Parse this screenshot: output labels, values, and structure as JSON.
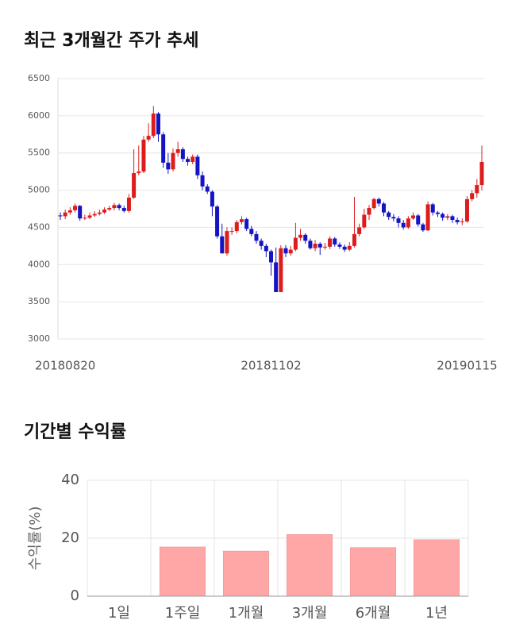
{
  "chart_data": [
    {
      "type": "candlestick",
      "title": "최근 3개월간 주가 추세",
      "categories": [
        null,
        "20180820",
        null,
        null,
        null,
        null,
        null,
        null,
        null,
        null,
        null,
        null,
        null,
        null,
        null,
        null,
        null,
        null,
        null,
        null,
        null,
        null,
        null,
        null,
        null,
        null,
        null,
        null,
        null,
        null,
        null,
        null,
        null,
        null,
        null,
        null,
        null,
        null,
        null,
        null,
        null,
        null,
        null,
        "20181102",
        null,
        null,
        null,
        null,
        null,
        null,
        null,
        null,
        null,
        null,
        null,
        null,
        null,
        null,
        null,
        null,
        null,
        null,
        null,
        null,
        null,
        null,
        null,
        null,
        null,
        null,
        null,
        null,
        null,
        null,
        null,
        null,
        null,
        null,
        null,
        null,
        null,
        null,
        null,
        "20190115",
        null,
        null,
        null
      ],
      "open": [
        4660,
        4650,
        4700,
        4730,
        4790,
        4620,
        4630,
        4660,
        4680,
        4700,
        4740,
        4760,
        4800,
        4760,
        4720,
        4900,
        5230,
        5250,
        5680,
        5730,
        6030,
        5750,
        5370,
        5280,
        5500,
        5550,
        5420,
        5380,
        5450,
        5200,
        5050,
        4980,
        4780,
        4380,
        4150,
        4450,
        4450,
        4570,
        4610,
        4480,
        4410,
        4320,
        4250,
        4180,
        4030,
        3630,
        4220,
        4150,
        4200,
        4360,
        4400,
        4320,
        4220,
        4280,
        4230,
        4240,
        4350,
        4270,
        4240,
        4200,
        4250,
        4410,
        4500,
        4670,
        4760,
        4880,
        4820,
        4700,
        4640,
        4620,
        4560,
        4500,
        4620,
        4660,
        4540,
        4460,
        4810,
        4700,
        4680,
        4630,
        4650,
        4600,
        4570,
        4580,
        4880,
        4960,
        5070
      ],
      "high": [
        4700,
        4740,
        4770,
        4820,
        4800,
        4670,
        4700,
        4720,
        4740,
        4770,
        4790,
        4830,
        4820,
        4790,
        4950,
        5550,
        5600,
        5730,
        5900,
        6130,
        6050,
        5780,
        5500,
        5560,
        5650,
        5580,
        5450,
        5480,
        5480,
        5250,
        5080,
        5000,
        4800,
        4550,
        4500,
        4500,
        4600,
        4650,
        4630,
        4520,
        4450,
        4350,
        4280,
        4200,
        4230,
        4260,
        4260,
        4250,
        4560,
        4480,
        4420,
        4350,
        4330,
        4300,
        4290,
        4380,
        4370,
        4300,
        4270,
        4300,
        4910,
        4550,
        4750,
        4800,
        4900,
        4900,
        4840,
        4720,
        4680,
        4650,
        4600,
        4650,
        4700,
        4680,
        4560,
        4850,
        4830,
        4720,
        4700,
        4680,
        4670,
        4630,
        4620,
        4920,
        5000,
        5150,
        5600
      ],
      "low": [
        4600,
        4610,
        4670,
        4700,
        4590,
        4600,
        4610,
        4640,
        4660,
        4680,
        4720,
        4730,
        4730,
        4700,
        4700,
        4880,
        5200,
        5230,
        5650,
        5700,
        5650,
        5300,
        5220,
        5250,
        5450,
        5380,
        5330,
        5350,
        5150,
        5000,
        4950,
        4650,
        4350,
        4150,
        4120,
        4400,
        4420,
        4540,
        4450,
        4380,
        4280,
        4200,
        4100,
        3850,
        3630,
        3630,
        4100,
        4120,
        4180,
        4320,
        4280,
        4200,
        4180,
        4130,
        4200,
        4210,
        4240,
        4210,
        4170,
        4180,
        4230,
        4380,
        4480,
        4600,
        4740,
        4780,
        4650,
        4600,
        4580,
        4500,
        4470,
        4480,
        4600,
        4510,
        4440,
        4450,
        4660,
        4640,
        4590,
        4600,
        4560,
        4540,
        4530,
        4560,
        4850,
        4900,
        5000
      ],
      "close": [
        4650,
        4700,
        4730,
        4790,
        4620,
        4630,
        4660,
        4680,
        4700,
        4740,
        4760,
        4800,
        4760,
        4720,
        4900,
        5230,
        5250,
        5680,
        5730,
        6030,
        5750,
        5370,
        5280,
        5500,
        5550,
        5420,
        5380,
        5450,
        5200,
        5050,
        4980,
        4780,
        4380,
        4150,
        4450,
        4450,
        4570,
        4610,
        4480,
        4410,
        4320,
        4250,
        4180,
        4030,
        3630,
        4220,
        4150,
        4200,
        4360,
        4400,
        4320,
        4220,
        4280,
        4230,
        4240,
        4350,
        4270,
        4240,
        4200,
        4250,
        4410,
        4500,
        4670,
        4760,
        4880,
        4820,
        4700,
        4640,
        4620,
        4560,
        4500,
        4620,
        4660,
        4540,
        4460,
        4810,
        4700,
        4680,
        4630,
        4650,
        4600,
        4570,
        4580,
        4880,
        4960,
        5070,
        5380
      ],
      "up_color": "#dd1c1c",
      "down_color": "#1414c4",
      "ylim": [
        3000,
        6500
      ],
      "yticks": [
        3000,
        3500,
        4000,
        4500,
        5000,
        5500,
        6000,
        6500
      ],
      "grid": true
    },
    {
      "type": "bar",
      "title": "기간별 수익률",
      "y_label": "수익률(%)",
      "categories": [
        "1일",
        "1주일",
        "1개월",
        "3개월",
        "6개월",
        "1년"
      ],
      "values": [
        0,
        17.0,
        15.6,
        21.3,
        16.8,
        19.5
      ],
      "color": "#ffa6a6",
      "ylim": [
        0,
        40
      ],
      "yticks": [
        0,
        20,
        40
      ],
      "grid": true
    }
  ]
}
